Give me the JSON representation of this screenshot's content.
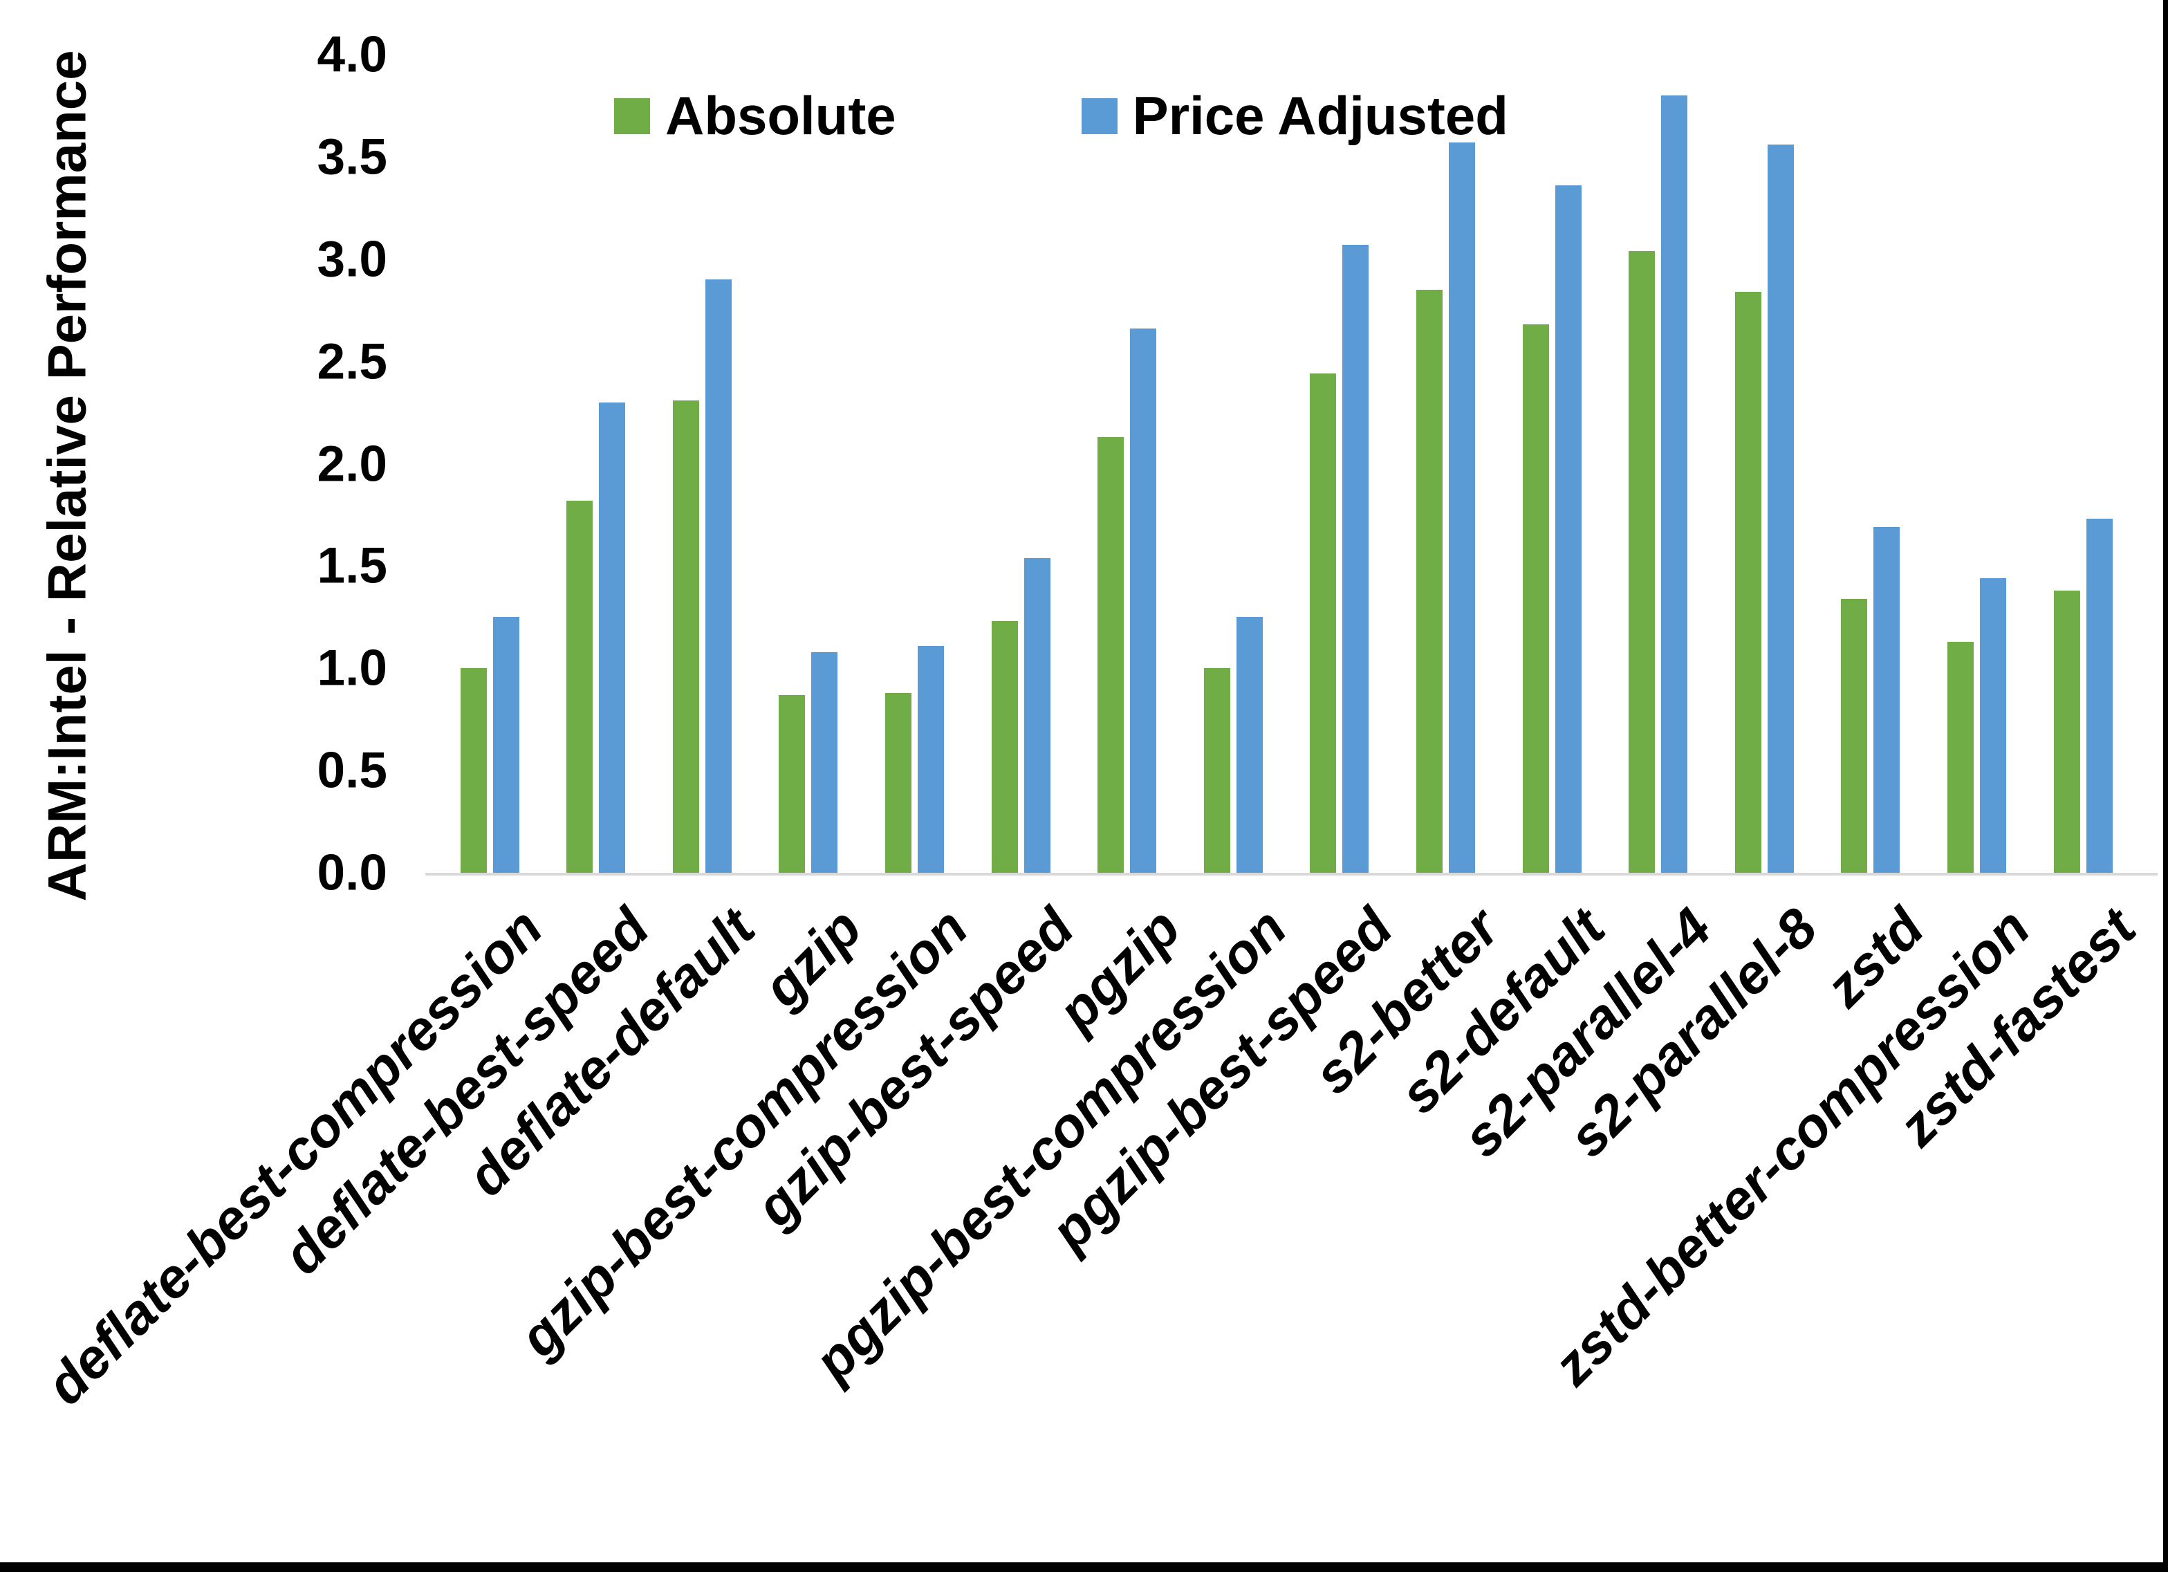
{
  "chart_data": {
    "type": "bar",
    "title": "",
    "ylabel": "ARM:Intel - Relative Performance",
    "xlabel": "",
    "ylim": [
      0.0,
      4.0
    ],
    "ytick_step": 0.5,
    "y_tick_labels": [
      "0.0",
      "0.5",
      "1.0",
      "1.5",
      "2.0",
      "2.5",
      "3.0",
      "3.5",
      "4.0"
    ],
    "grid": "off",
    "legend_position": "top-center",
    "categories": [
      "deflate-best-compression",
      "deflate-best-speed",
      "deflate-default",
      "gzip",
      "gzip-best-compression",
      "gzip-best-speed",
      "pgzip",
      "pgzip-best-compression",
      "pgzip-best-speed",
      "s2-better",
      "s2-default",
      "s2-parallel-4",
      "s2-parallel-8",
      "zstd",
      "zstd-better-compression",
      "zstd-fastest"
    ],
    "series": [
      {
        "name": "Absolute",
        "color": "#70AD47",
        "values": [
          1.0,
          1.82,
          2.31,
          0.87,
          0.88,
          1.23,
          2.13,
          1.0,
          2.44,
          2.85,
          2.68,
          3.04,
          2.84,
          1.34,
          1.13,
          1.38
        ]
      },
      {
        "name": "Price Adjusted",
        "color": "#5B9BD5",
        "values": [
          1.25,
          2.3,
          2.9,
          1.08,
          1.11,
          1.54,
          2.66,
          1.25,
          3.07,
          3.57,
          3.36,
          3.8,
          3.56,
          1.69,
          1.44,
          1.73
        ]
      }
    ]
  },
  "colors": {
    "background": "#FFFFFF",
    "axis_line": "#D9D9D9",
    "text": "#000000",
    "frame_edge": "#000000"
  }
}
